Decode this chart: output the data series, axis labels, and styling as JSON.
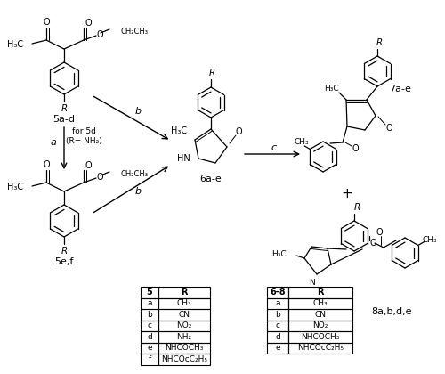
{
  "background_color": "#ffffff",
  "table1_header": [
    "5",
    "R"
  ],
  "table1_rows": [
    [
      "a",
      "CH₃"
    ],
    [
      "b",
      "CN"
    ],
    [
      "c",
      "NO₂"
    ],
    [
      "d",
      "NH₂"
    ],
    [
      "e",
      "NHCOCH₃"
    ],
    [
      "f",
      "NHCOcC₂H₅"
    ]
  ],
  "table2_header": [
    "6-8",
    "R"
  ],
  "table2_rows": [
    [
      "a",
      "CH₃"
    ],
    [
      "b",
      "CN"
    ],
    [
      "c",
      "NO₂"
    ],
    [
      "d",
      "NHCOCH₃"
    ],
    [
      "e",
      "NHCOcC₂H₅"
    ]
  ]
}
